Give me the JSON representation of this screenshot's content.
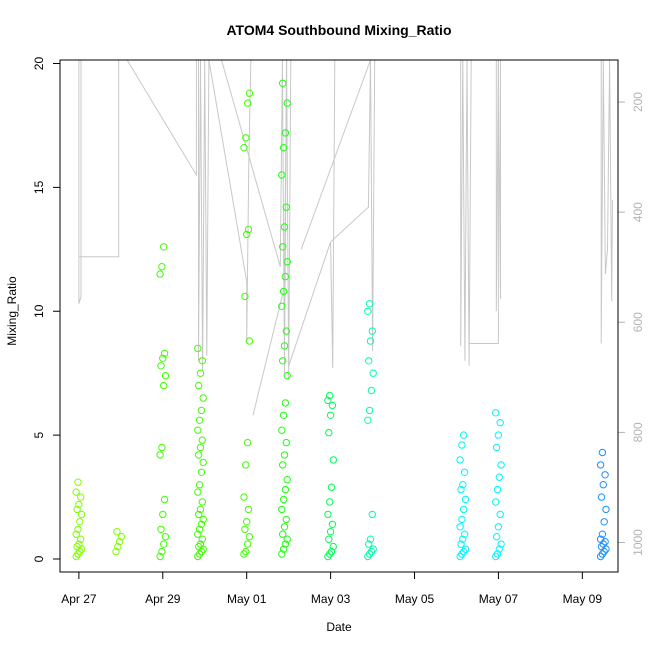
{
  "chart_data": {
    "type": "scatter",
    "title": "ATOM4 Southbound Mixing_Ratio",
    "xlabel": "Date",
    "ylabel": "Mixing_Ratio",
    "x_ticks": [
      {
        "value": 0,
        "label": "Apr 27"
      },
      {
        "value": 2,
        "label": "Apr 29"
      },
      {
        "value": 4,
        "label": "May 01"
      },
      {
        "value": 6,
        "label": "May 03"
      },
      {
        "value": 8,
        "label": "May 05"
      },
      {
        "value": 10,
        "label": "May 07"
      },
      {
        "value": 12,
        "label": "May 09"
      }
    ],
    "xlim": [
      -0.45,
      12.85
    ],
    "ylim": [
      0,
      20
    ],
    "y_ticks": [
      0,
      5,
      10,
      15,
      20
    ],
    "y2_ticks": [
      200,
      400,
      600,
      800,
      1000
    ],
    "y2lim": [
      1030,
      130
    ],
    "y2_label": "",
    "point_colors": {
      "yellowgreen": "#7fff00",
      "green": "#3fff00",
      "springgreen": "#00ff40",
      "aquamarine": "#00ffaa",
      "cyan": "#00f5ff",
      "blue": "#1e90ff"
    },
    "altitude_line_color": "#c8c8c8",
    "clusters": [
      {
        "day": 0.0,
        "color": "#7fff00",
        "values": [
          0.1,
          0.2,
          0.3,
          0.4,
          0.5,
          0.6,
          0.8,
          1.0,
          1.2,
          1.5,
          1.8,
          2.0,
          2.2,
          2.5,
          2.7,
          3.1
        ]
      },
      {
        "day": 0.95,
        "color": "#7fff00",
        "values": [
          0.3,
          0.5,
          0.7,
          0.9,
          1.1
        ]
      },
      {
        "day": 2.0,
        "color": "#3fff00",
        "values": [
          0.1,
          0.3,
          0.6,
          0.9,
          1.2,
          1.8,
          2.4,
          4.2,
          4.5,
          7.0,
          7.4,
          7.8,
          8.1,
          8.3,
          11.5,
          11.8,
          12.6
        ]
      },
      {
        "day": 2.9,
        "color": "#3fff00",
        "values": [
          0.1,
          0.2,
          0.3,
          0.4,
          0.5,
          0.6,
          0.8,
          1.0,
          1.2,
          1.4,
          1.6,
          1.8,
          2.0,
          2.3,
          2.7,
          3.0,
          3.5,
          3.9,
          4.2,
          4.5,
          4.8,
          5.2,
          5.6,
          6.0,
          6.5,
          7.0,
          7.5,
          8.0,
          8.5
        ]
      },
      {
        "day": 4.0,
        "color": "#3fff00",
        "values": [
          0.2,
          0.3,
          0.6,
          0.9,
          1.2,
          1.5,
          2.0,
          2.5,
          3.8,
          4.7,
          8.8,
          10.6,
          13.1,
          13.3,
          16.6,
          17.0,
          18.4,
          18.8
        ]
      },
      {
        "day": 4.9,
        "color": "#1fff10",
        "values": [
          0.2,
          0.4,
          0.6,
          0.8,
          1.0,
          1.3,
          1.6,
          2.0,
          2.4,
          2.8,
          3.2,
          3.8,
          4.2,
          4.7,
          5.2,
          5.8,
          6.3,
          7.4,
          8.0,
          8.6,
          9.2,
          10.2,
          10.8,
          11.4,
          12.0,
          12.6,
          13.4,
          14.2,
          15.5,
          16.6,
          17.2,
          18.4,
          19.2
        ]
      },
      {
        "day": 6.0,
        "color": "#00ff55",
        "values": [
          0.1,
          0.2,
          0.3,
          0.5,
          0.8,
          1.1,
          1.4,
          1.8,
          2.3,
          2.9,
          4.0,
          5.1,
          5.8,
          6.2,
          6.4,
          6.6
        ]
      },
      {
        "day": 6.95,
        "color": "#00ffaa",
        "values": [
          0.1,
          0.2,
          0.3,
          0.4,
          0.6,
          0.8,
          1.8,
          5.6,
          6.0,
          6.8,
          7.5,
          8.0,
          8.8,
          9.2,
          10.0,
          10.3
        ]
      },
      {
        "day": 9.15,
        "color": "#00f5ff",
        "values": [
          0.1,
          0.2,
          0.3,
          0.4,
          0.6,
          0.8,
          1.0,
          1.3,
          1.6,
          2.0,
          2.4,
          2.8,
          3.0,
          3.5,
          4.0,
          4.6,
          5.0
        ]
      },
      {
        "day": 10.0,
        "color": "#00f5ff",
        "values": [
          0.1,
          0.2,
          0.4,
          0.6,
          0.9,
          1.3,
          1.8,
          2.3,
          2.8,
          3.3,
          3.8,
          4.5,
          5.0,
          5.5,
          5.9
        ]
      },
      {
        "day": 12.5,
        "color": "#1e90ff",
        "values": [
          0.1,
          0.2,
          0.3,
          0.4,
          0.5,
          0.6,
          0.7,
          0.8,
          1.0,
          1.5,
          2.0,
          2.5,
          3.0,
          3.4,
          3.8,
          4.3
        ]
      }
    ],
    "grid": false,
    "legend": "none"
  }
}
